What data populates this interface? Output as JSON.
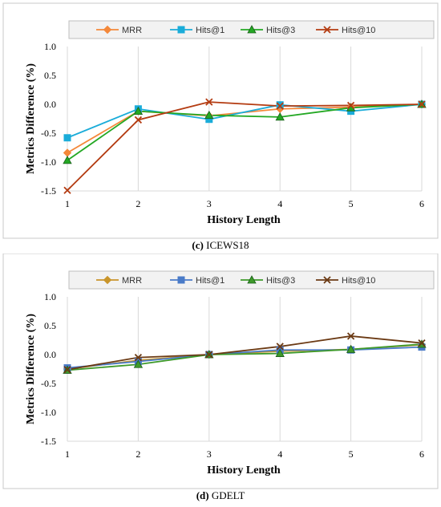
{
  "chart_data": [
    {
      "type": "line",
      "caption_tag": "(c)",
      "caption_name": "ICEWS18",
      "xlabel": "History Length",
      "ylabel": "Metrics  Difference (%)",
      "x": [
        1,
        2,
        3,
        4,
        5,
        6
      ],
      "ylim": [
        -1.5,
        1.0
      ],
      "yticks": [
        "1.0",
        "0.5",
        "0.0",
        "-0.5",
        "-1.0",
        "-1.5"
      ],
      "grid": "vertical",
      "legend_position": "top",
      "series": [
        {
          "name": "MRR",
          "color": "#F4883A",
          "marker": "diamond",
          "values": [
            -0.84,
            -0.12,
            -0.2,
            -0.08,
            -0.05,
            0.0
          ]
        },
        {
          "name": "Hits@1",
          "color": "#1AACD9",
          "marker": "square",
          "values": [
            -0.58,
            -0.08,
            -0.26,
            -0.01,
            -0.12,
            0.0
          ]
        },
        {
          "name": "Hits@3",
          "color": "#24A824",
          "marker": "triangle",
          "values": [
            -0.97,
            -0.12,
            -0.19,
            -0.22,
            -0.06,
            0.0
          ]
        },
        {
          "name": "Hits@10",
          "color": "#B43C12",
          "marker": "x",
          "values": [
            -1.49,
            -0.27,
            0.04,
            -0.03,
            -0.02,
            0.0
          ]
        }
      ]
    },
    {
      "type": "line",
      "caption_tag": "(d)",
      "caption_name": "GDELT",
      "xlabel": "History Length",
      "ylabel": "Metrics  Difference (%)",
      "x": [
        1,
        2,
        3,
        4,
        5,
        6
      ],
      "ylim": [
        -1.5,
        1.0
      ],
      "yticks": [
        "1.0",
        "0.5",
        "0.0",
        "-0.5",
        "-1.0",
        "-1.5"
      ],
      "grid": "vertical",
      "legend_position": "top",
      "series": [
        {
          "name": "MRR",
          "color": "#C9952B",
          "marker": "diamond",
          "values": [
            -0.25,
            -0.1,
            0.0,
            0.06,
            0.09,
            0.17
          ]
        },
        {
          "name": "Hits@1",
          "color": "#4A7BC8",
          "marker": "square",
          "values": [
            -0.23,
            -0.12,
            0.0,
            0.08,
            0.08,
            0.13
          ]
        },
        {
          "name": "Hits@3",
          "color": "#3E9A2A",
          "marker": "triangle",
          "values": [
            -0.27,
            -0.17,
            0.0,
            0.02,
            0.09,
            0.18
          ]
        },
        {
          "name": "Hits@10",
          "color": "#6B3A14",
          "marker": "x",
          "values": [
            -0.26,
            -0.05,
            0.0,
            0.14,
            0.32,
            0.2
          ]
        }
      ]
    }
  ]
}
